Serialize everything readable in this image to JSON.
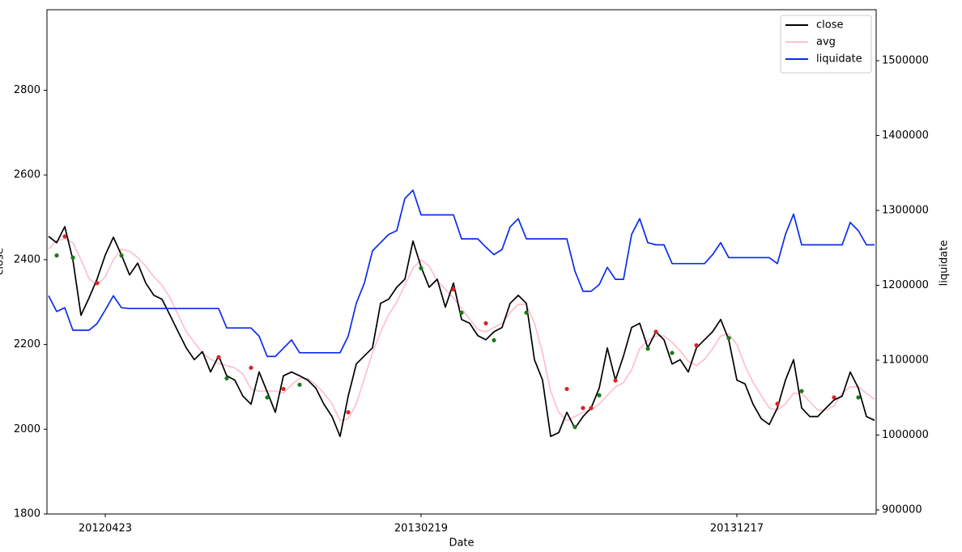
{
  "chart_data": {
    "type": "line",
    "x_label": "Date",
    "y_label": "close",
    "y2_label": "liquidate",
    "categories": [
      null,
      null,
      null,
      null,
      null,
      null,
      null,
      "20120423",
      null,
      null,
      null,
      null,
      null,
      null,
      null,
      null,
      null,
      null,
      null,
      null,
      null,
      null,
      null,
      null,
      null,
      null,
      null,
      null,
      null,
      null,
      null,
      null,
      null,
      null,
      null,
      null,
      null,
      null,
      null,
      null,
      null,
      null,
      null,
      null,
      null,
      null,
      "20130219",
      null,
      null,
      null,
      null,
      null,
      null,
      null,
      null,
      null,
      null,
      null,
      null,
      null,
      null,
      null,
      null,
      null,
      null,
      null,
      null,
      null,
      null,
      null,
      null,
      null,
      null,
      null,
      null,
      null,
      null,
      null,
      null,
      null,
      null,
      null,
      null,
      null,
      null,
      "20131217",
      null,
      null,
      null,
      null,
      null,
      null,
      null,
      null,
      null,
      null,
      null,
      null,
      null,
      null,
      null,
      null,
      null
    ],
    "ylim": [
      1800,
      2990
    ],
    "yticks": [
      1800,
      2000,
      2200,
      2400,
      2600,
      2800
    ],
    "y2lim": [
      894600,
      1568100
    ],
    "y2ticks": [
      900000,
      1000000,
      1100000,
      1200000,
      1300000,
      1400000,
      1500000
    ],
    "legend": "upper right",
    "series": [
      {
        "name": "close",
        "color": "#000000",
        "values": [
          2455,
          2440,
          2478,
          2400,
          2269,
          2310,
          2355,
          2411,
          2453,
          2411,
          2364,
          2392,
          2345,
          2316,
          2307,
          2269,
          2230,
          2192,
          2164,
          2183,
          2135,
          2173,
          2126,
          2116,
          2078,
          2059,
          2135,
          2088,
          2040,
          2126,
          2135,
          2126,
          2116,
          2097,
          2059,
          2030,
          1983,
          2078,
          2154,
          2173,
          2192,
          2297,
          2307,
          2335,
          2354,
          2444,
          2383,
          2335,
          2354,
          2288,
          2345,
          2259,
          2250,
          2221,
          2211,
          2230,
          2240,
          2297,
          2316,
          2297,
          2164,
          2116,
          1983,
          1992,
          2040,
          2002,
          2030,
          2050,
          2097,
          2192,
          2116,
          2173,
          2240,
          2250,
          2192,
          2230,
          2211,
          2154,
          2164,
          2135,
          2192,
          2211,
          2230,
          2259,
          2211,
          2116,
          2107,
          2059,
          2025,
          2011,
          2050,
          2116,
          2164,
          2050,
          2030,
          2030,
          2050,
          2069,
          2078,
          2135,
          2097,
          2030,
          2021
        ]
      },
      {
        "name": "avg",
        "color": "#ffc0cb",
        "values": [
          2425,
          2445,
          2450,
          2440,
          2400,
          2355,
          2340,
          2360,
          2400,
          2425,
          2420,
          2405,
          2385,
          2360,
          2340,
          2310,
          2270,
          2230,
          2205,
          2180,
          2165,
          2155,
          2150,
          2145,
          2130,
          2095,
          2090,
          2090,
          2090,
          2085,
          2105,
          2120,
          2120,
          2105,
          2085,
          2060,
          2020,
          2025,
          2060,
          2120,
          2180,
          2230,
          2270,
          2300,
          2340,
          2380,
          2400,
          2385,
          2350,
          2330,
          2310,
          2285,
          2260,
          2235,
          2230,
          2240,
          2250,
          2275,
          2295,
          2295,
          2250,
          2180,
          2090,
          2040,
          2020,
          2030,
          2040,
          2045,
          2060,
          2080,
          2100,
          2110,
          2140,
          2190,
          2210,
          2220,
          2220,
          2205,
          2185,
          2160,
          2150,
          2165,
          2190,
          2220,
          2225,
          2200,
          2150,
          2110,
          2080,
          2050,
          2045,
          2060,
          2085,
          2085,
          2065,
          2045,
          2045,
          2055,
          2085,
          2100,
          2100,
          2085,
          2070
        ]
      },
      {
        "name": "liquidate",
        "color": "#0b2bf0",
        "axis": "y2",
        "values": [
          1186000,
          1165000,
          1170000,
          1140000,
          1140000,
          1140000,
          1149000,
          1167000,
          1186000,
          1170000,
          1169000,
          1169000,
          1169000,
          1169000,
          1169000,
          1169000,
          1169000,
          1169000,
          1169000,
          1169000,
          1169000,
          1169000,
          1143000,
          1143000,
          1143000,
          1143000,
          1132000,
          1105000,
          1105000,
          1116000,
          1127000,
          1110000,
          1110000,
          1110000,
          1110000,
          1110000,
          1110000,
          1132000,
          1176000,
          1203000,
          1246000,
          1257000,
          1268000,
          1273000,
          1316000,
          1327000,
          1294000,
          1294000,
          1294000,
          1294000,
          1294000,
          1262000,
          1262000,
          1262000,
          1251000,
          1241000,
          1248000,
          1278000,
          1289000,
          1262000,
          1262000,
          1262000,
          1262000,
          1262000,
          1262000,
          1219000,
          1192000,
          1192000,
          1201000,
          1224000,
          1208000,
          1208000,
          1268000,
          1289000,
          1257000,
          1254000,
          1254000,
          1229000,
          1229000,
          1229000,
          1229000,
          1229000,
          1241000,
          1257000,
          1237000,
          1237000,
          1237000,
          1237000,
          1237000,
          1237000,
          1229000,
          1268000,
          1295000,
          1254000,
          1254000,
          1254000,
          1254000,
          1254000,
          1254000,
          1284000,
          1273000,
          1254000,
          1254000
        ]
      },
      {
        "marker": true,
        "color": "#d62728",
        "values": [
          null,
          null,
          2455,
          null,
          null,
          null,
          2345,
          null,
          null,
          null,
          null,
          null,
          null,
          null,
          null,
          null,
          null,
          null,
          null,
          null,
          null,
          2170,
          null,
          null,
          null,
          2145,
          null,
          null,
          null,
          2095,
          null,
          null,
          null,
          null,
          null,
          null,
          null,
          2040,
          null,
          null,
          null,
          null,
          null,
          null,
          null,
          null,
          null,
          null,
          null,
          null,
          2330,
          null,
          null,
          null,
          2250,
          null,
          null,
          null,
          null,
          null,
          null,
          null,
          null,
          null,
          2095,
          null,
          2050,
          2050,
          null,
          null,
          2115,
          null,
          null,
          null,
          null,
          2230,
          null,
          null,
          null,
          null,
          2198,
          null,
          null,
          null,
          null,
          null,
          null,
          null,
          null,
          null,
          2060,
          null,
          null,
          null,
          null,
          null,
          null,
          2075,
          null,
          null,
          null,
          null,
          null
        ]
      },
      {
        "marker": true,
        "color": "#1a7a1a",
        "values": [
          null,
          2410,
          null,
          2405,
          null,
          null,
          null,
          null,
          null,
          2410,
          null,
          null,
          null,
          null,
          null,
          null,
          null,
          null,
          null,
          null,
          null,
          null,
          2120,
          null,
          null,
          null,
          null,
          2075,
          null,
          null,
          null,
          2105,
          null,
          null,
          null,
          null,
          null,
          null,
          null,
          null,
          null,
          null,
          null,
          null,
          null,
          null,
          2380,
          null,
          null,
          null,
          null,
          2275,
          null,
          null,
          null,
          2210,
          null,
          null,
          null,
          2275,
          null,
          null,
          null,
          null,
          null,
          2005,
          null,
          null,
          2080,
          null,
          null,
          null,
          null,
          null,
          2190,
          null,
          null,
          2180,
          null,
          null,
          null,
          null,
          null,
          null,
          2215,
          null,
          null,
          null,
          null,
          null,
          null,
          null,
          null,
          2090,
          null,
          null,
          null,
          null,
          null,
          null,
          2075,
          null,
          null
        ]
      }
    ]
  }
}
